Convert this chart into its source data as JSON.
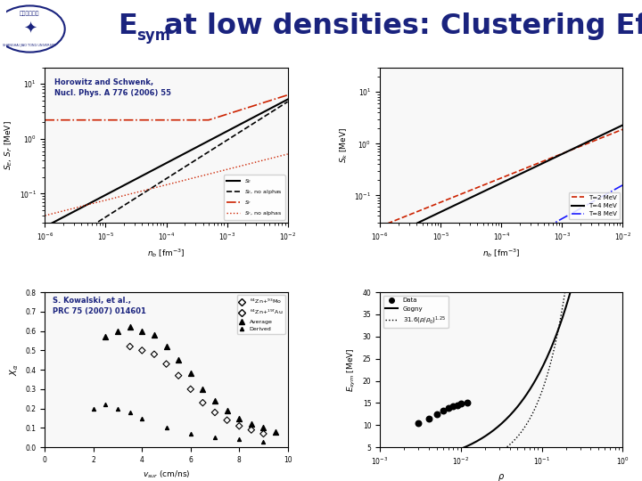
{
  "title_main": "at low densities: Clustering Effects",
  "bg_color": "#ffffff",
  "header_color": "#1a237e",
  "header_line_color": "#1565c0",
  "ref1": "Horowitz and Schwenk,\nNucl. Phys. A 776 (2006) 55",
  "ref2": "S. Kowalski, et al.,\nPRC 75 (2007) 014601",
  "panel1_legend": [
    "$S_E$",
    "$S_E$, no alphas",
    "$S_F$",
    "$S_F$, no alphas"
  ],
  "panel1_colors": [
    "black",
    "black",
    "#cc2200",
    "#cc2200"
  ],
  "panel1_styles": [
    "-",
    "--",
    "-.",
    ":"
  ],
  "panel2_legend": [
    "T=2 MeV",
    "T=4 MeV",
    "T=8 MeV"
  ],
  "panel2_colors": [
    "#cc2200",
    "black",
    "#1a1aff"
  ],
  "panel2_styles": [
    "--",
    "-",
    "-."
  ]
}
